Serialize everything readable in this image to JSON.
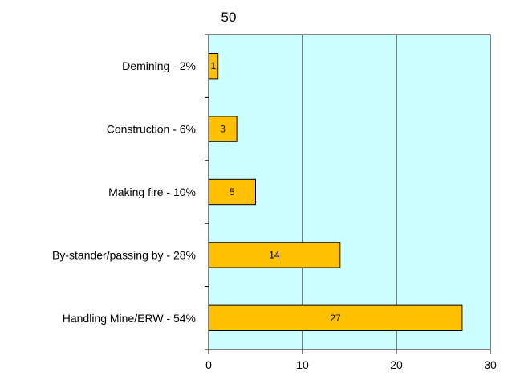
{
  "chart_data": {
    "type": "bar",
    "orientation": "horizontal",
    "title": "50",
    "categories": [
      "Demining - 2%",
      "Construction - 6%",
      "Making fire - 10%",
      "By-stander/passing by - 28%",
      "Handling Mine/ERW - 54%"
    ],
    "values": [
      1,
      3,
      5,
      14,
      27
    ],
    "data_labels": [
      "1",
      "3",
      "5",
      "14",
      "27"
    ],
    "xlim": [
      0,
      30
    ],
    "xticks": [
      0,
      10,
      20,
      30
    ],
    "xtick_labels": [
      "0",
      "10",
      "20",
      "30"
    ],
    "grid": "vertical major gridlines",
    "legend": "none",
    "xlabel": "",
    "ylabel": "",
    "colors": {
      "bar_fill": "#FFC000",
      "bar_stroke": "#000000",
      "plot_background": "#CCFFFF",
      "gridline": "#000000",
      "axis": "#000000"
    }
  }
}
